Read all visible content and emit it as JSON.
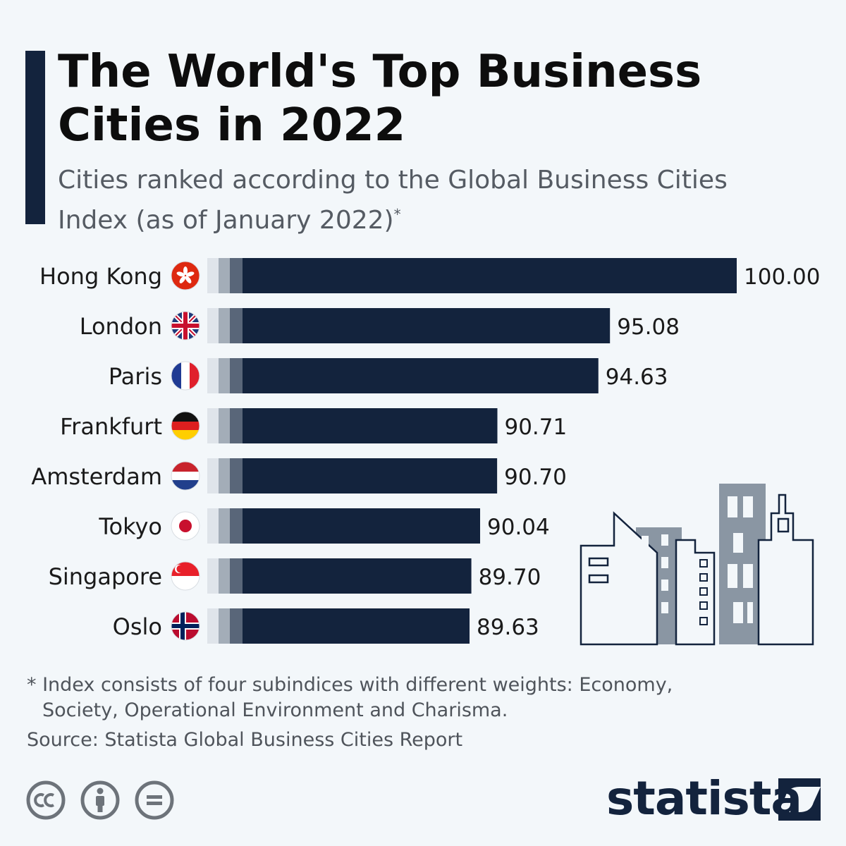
{
  "header": {
    "title": "The World's Top Business Cities in 2022",
    "subtitle": "Cities ranked according to the Global Business Cities Index (as of January 2022)",
    "subtitle_mark": "*"
  },
  "chart_data": {
    "type": "bar",
    "orientation": "horizontal",
    "title": "The World's Top Business Cities in 2022",
    "categories": [
      "Hong Kong",
      "London",
      "Paris",
      "Frankfurt",
      "Amsterdam",
      "Tokyo",
      "Singapore",
      "Oslo"
    ],
    "values": [
      100.0,
      95.08,
      94.63,
      90.71,
      90.7,
      90.04,
      89.7,
      89.63
    ],
    "value_labels": [
      "100.00",
      "95.08",
      "94.63",
      "90.71",
      "90.70",
      "90.04",
      "89.70",
      "89.63"
    ],
    "flags": [
      "hong-kong-flag-icon",
      "uk-flag-icon",
      "france-flag-icon",
      "germany-flag-icon",
      "netherlands-flag-icon",
      "japan-flag-icon",
      "singapore-flag-icon",
      "norway-flag-icon"
    ],
    "bar_color": "#13233d",
    "xlabel": "",
    "ylabel": "",
    "grid": false,
    "legend": "none"
  },
  "footnote": {
    "line1": "* Index consists of four subindices with different weights: Economy,",
    "line2": "Society, Operational Environment and Charisma."
  },
  "source": "Source: Statista Global Business Cities Report",
  "brand": {
    "name": "statista"
  },
  "icons": [
    "cc-icon",
    "attribution-icon",
    "no-derivatives-icon",
    "statista-logo-icon",
    "city-skyline-icon"
  ]
}
